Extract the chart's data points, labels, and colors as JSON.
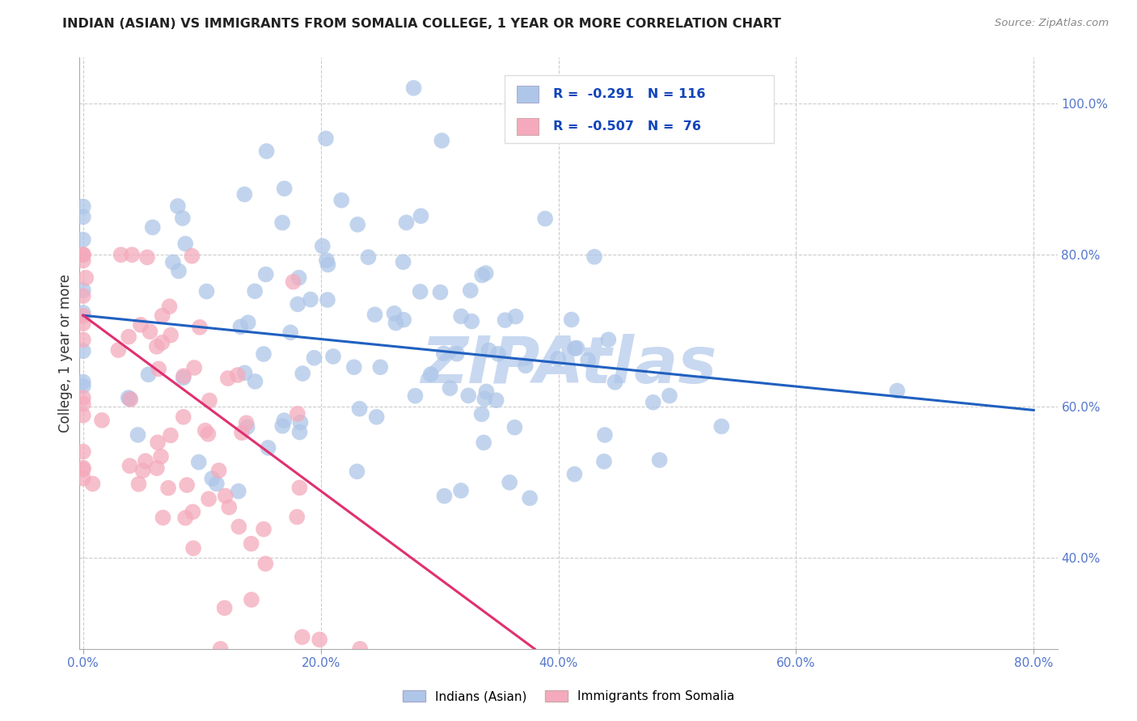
{
  "title": "INDIAN (ASIAN) VS IMMIGRANTS FROM SOMALIA COLLEGE, 1 YEAR OR MORE CORRELATION CHART",
  "source": "Source: ZipAtlas.com",
  "ylabel": "College, 1 year or more",
  "legend_label1": "Indians (Asian)",
  "legend_label2": "Immigrants from Somalia",
  "R1": -0.291,
  "N1": 116,
  "R2": -0.507,
  "N2": 76,
  "color_blue": "#aec6e8",
  "color_pink": "#f4aabc",
  "line_color_blue": "#2060c0",
  "line_color_pink": "#e03070",
  "watermark": "ZIPAtlas",
  "watermark_color": "#c8d8f0",
  "bg_color": "#ffffff",
  "grid_color": "#cccccc",
  "tick_color": "#5577cc",
  "title_color": "#222222",
  "ylabel_color": "#333333",
  "source_color": "#888888",
  "xlim": [
    -0.003,
    0.82
  ],
  "ylim": [
    0.28,
    1.06
  ],
  "xtick_vals": [
    0.0,
    0.2,
    0.4,
    0.6,
    0.8
  ],
  "xtick_labels": [
    "0.0%",
    "20.0%",
    "40.0%",
    "60.0%",
    "80.0%"
  ],
  "ytick_vals": [
    0.4,
    0.6,
    0.8,
    1.0
  ],
  "ytick_labels": [
    "40.0%",
    "60.0%",
    "80.0%",
    "100.0%"
  ],
  "blue_line_x": [
    0.0,
    0.8
  ],
  "blue_line_y": [
    0.72,
    0.595
  ],
  "pink_line_x": [
    0.0,
    0.38
  ],
  "pink_line_y": [
    0.72,
    0.28
  ]
}
